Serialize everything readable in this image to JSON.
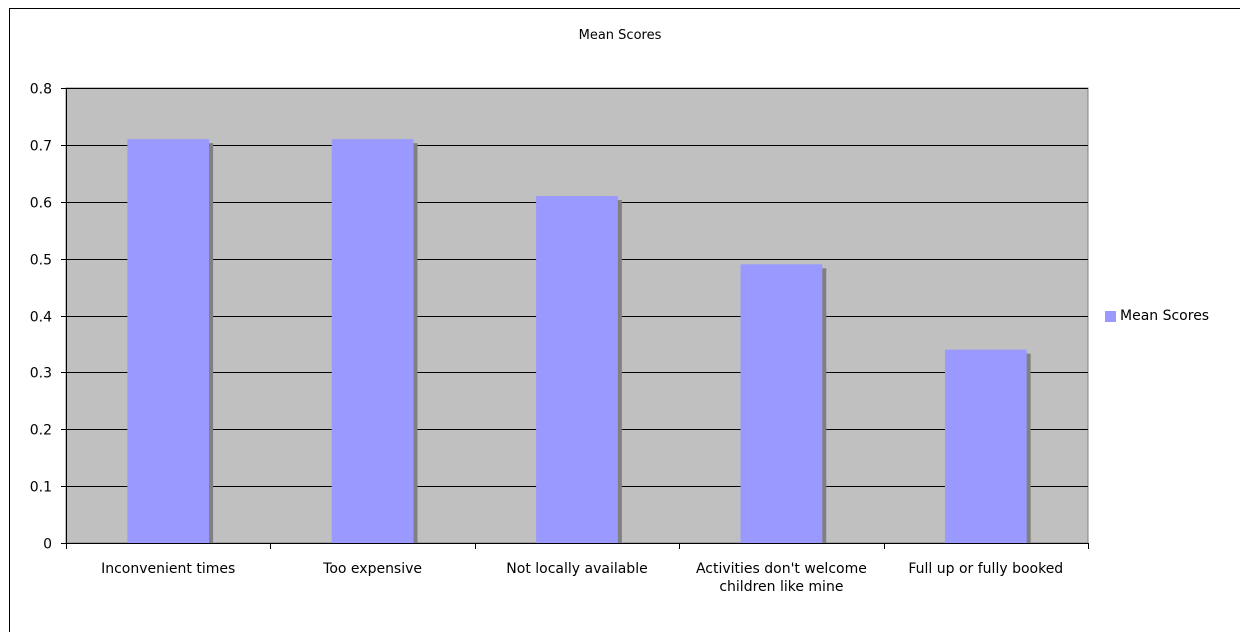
{
  "chart_data": {
    "type": "bar",
    "title": "Mean Scores",
    "categories": [
      "Inconvenient times",
      "Too expensive",
      "Not locally available",
      "Activities don't welcome children like mine",
      "Full up or fully booked"
    ],
    "series": [
      {
        "name": "Mean Scores",
        "values": [
          0.71,
          0.71,
          0.61,
          0.49,
          0.34
        ],
        "color": "#9999ff"
      }
    ],
    "ylim": [
      0,
      0.8
    ],
    "yticks": [
      "0",
      "0.1",
      "0.2",
      "0.3",
      "0.4",
      "0.5",
      "0.6",
      "0.7",
      "0.8"
    ],
    "xlabel": "",
    "ylabel": "",
    "grid": true,
    "plot_background": "#c0c0c0",
    "legend_position": "right"
  }
}
